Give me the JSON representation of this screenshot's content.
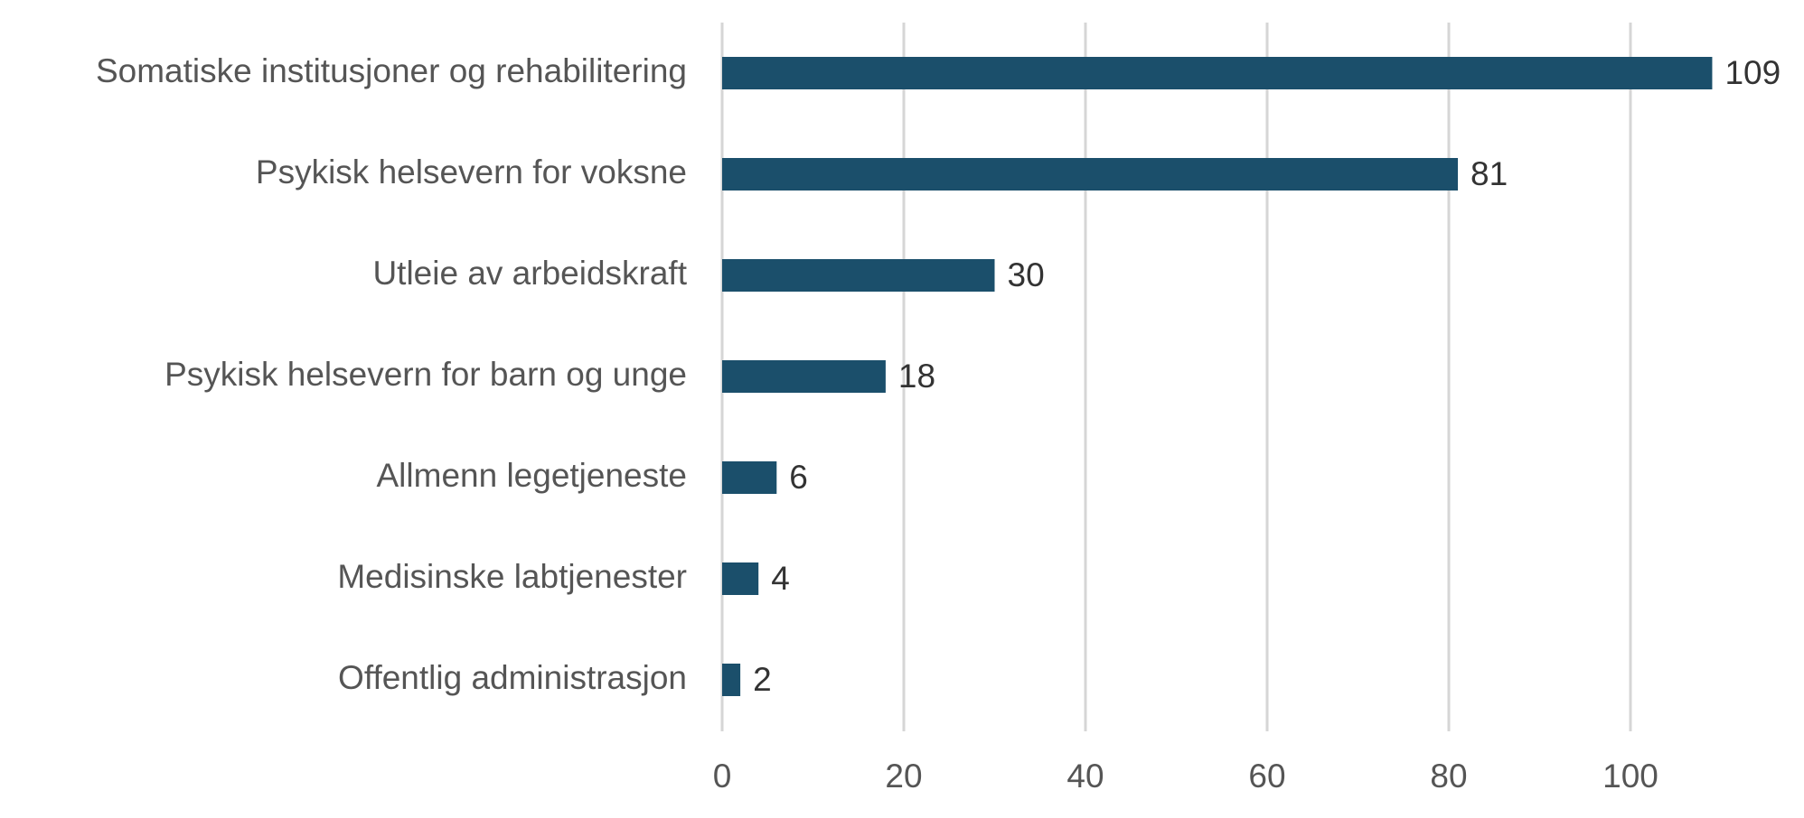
{
  "chart_data": {
    "type": "hbar",
    "categories": [
      "Somatiske institusjoner og rehabilitering",
      "Psykisk helsevern for voksne",
      "Utleie av arbeidskraft",
      "Psykisk helsevern for barn og unge",
      "Allmenn legetjeneste",
      "Medisinske labtjenester",
      "Offentlig administrasjon"
    ],
    "values": [
      109,
      81,
      30,
      18,
      6,
      4,
      2
    ],
    "color": "#1b4f6b",
    "xlim": [
      0,
      110
    ],
    "xticks": [
      0,
      20,
      40,
      60,
      80,
      100
    ],
    "grid": true
  }
}
